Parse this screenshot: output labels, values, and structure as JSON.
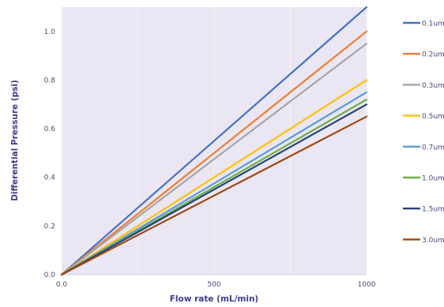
{
  "chart_data": {
    "type": "line",
    "xlabel": "Flow rate (mL/min)",
    "ylabel": "Differential Pressure (psi)",
    "xlim": [
      0,
      1000
    ],
    "ylim": [
      0,
      1.1
    ],
    "x_ticks": [
      0,
      500,
      1000
    ],
    "x_tick_labels": [
      "0.0",
      "500",
      "1000"
    ],
    "y_ticks": [
      0,
      0.2,
      0.4,
      0.6,
      0.8,
      1.0
    ],
    "y_tick_labels": [
      "0.0",
      "0.2",
      "0.4",
      "0.6",
      "0.8",
      "1.0"
    ],
    "grid": true,
    "legend_placement": "right",
    "plot_background": "#ebe6f4",
    "series": [
      {
        "name": "0.1um",
        "color": "#4472c4",
        "x": [
          0,
          1000
        ],
        "y": [
          0,
          1.1
        ]
      },
      {
        "name": "0.2um",
        "color": "#ed7d31",
        "x": [
          0,
          1000
        ],
        "y": [
          0,
          1.0
        ]
      },
      {
        "name": "0.3um",
        "color": "#a5a5a5",
        "x": [
          0,
          1000
        ],
        "y": [
          0,
          0.95
        ]
      },
      {
        "name": "0.5um",
        "color": "#ffc000",
        "x": [
          0,
          1000
        ],
        "y": [
          0,
          0.8
        ]
      },
      {
        "name": "0.7um",
        "color": "#5b9bd5",
        "x": [
          0,
          1000
        ],
        "y": [
          0,
          0.75
        ]
      },
      {
        "name": "1.0um",
        "color": "#70ad47",
        "x": [
          0,
          1000
        ],
        "y": [
          0,
          0.72
        ]
      },
      {
        "name": "1.5um",
        "color": "#264478",
        "x": [
          0,
          1000
        ],
        "y": [
          0,
          0.7
        ]
      },
      {
        "name": "3.0um",
        "color": "#9e480e",
        "x": [
          0,
          1000
        ],
        "y": [
          0,
          0.65
        ]
      }
    ]
  }
}
